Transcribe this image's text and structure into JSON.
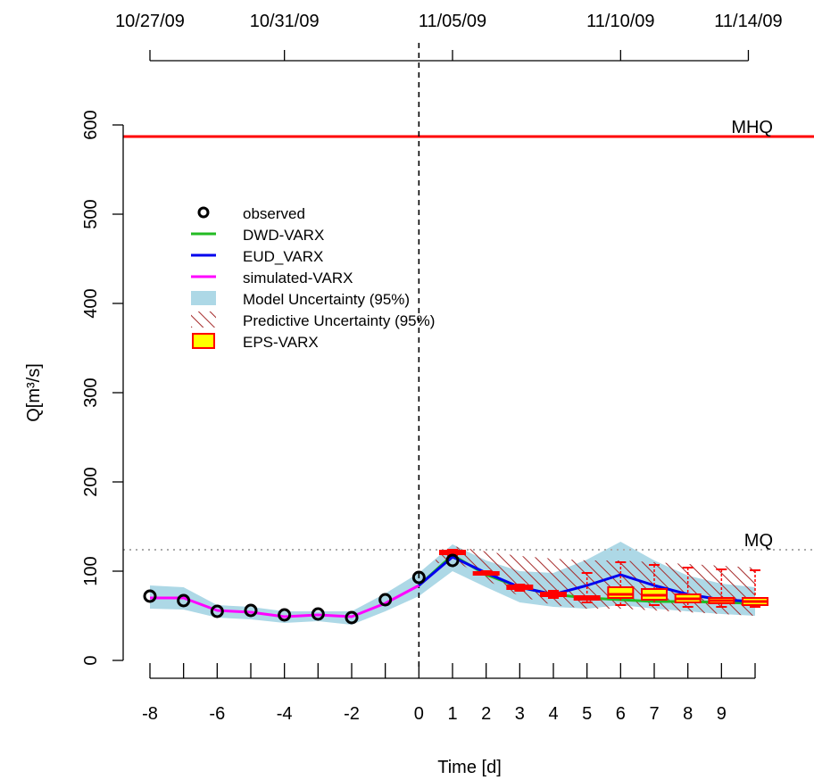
{
  "chart_data": {
    "type": "line",
    "ylabel": "Q[m³/s]",
    "xlabel": "Time [d]",
    "top_axis": {
      "ticks": [
        {
          "x": -8,
          "label": "10/27/09"
        },
        {
          "x": -4,
          "label": "10/31/09"
        },
        {
          "x": 1,
          "label": "11/05/09"
        },
        {
          "x": 6,
          "label": "11/10/09"
        },
        {
          "x": 9.8,
          "label": "11/14/09"
        }
      ]
    },
    "xlim": [
      -8.8,
      11.5
    ],
    "ylim": [
      0,
      600
    ],
    "x_ticks": [
      -8,
      -7,
      -6,
      -5,
      -4,
      -3,
      -2,
      -1,
      0,
      1,
      2,
      3,
      4,
      5,
      6,
      7,
      8,
      9,
      10
    ],
    "x_tick_labels": [
      "-8",
      "-6",
      "-4",
      "-2",
      "0",
      "1",
      "2",
      "3",
      "4",
      "5",
      "6",
      "7",
      "8",
      "9"
    ],
    "x_tick_label_values": [
      -8,
      -6,
      -4,
      -2,
      0,
      1,
      2,
      3,
      4,
      5,
      6,
      7,
      8,
      9
    ],
    "y_ticks": [
      0,
      100,
      200,
      300,
      400,
      500,
      600
    ],
    "y_tick_labels": [
      "0",
      "100",
      "200",
      "300",
      "400",
      "500",
      "600"
    ],
    "reference_lines": [
      {
        "name": "MHQ",
        "y": 587,
        "color": "#ff0000",
        "style": "solid"
      },
      {
        "name": "MQ",
        "y": 124,
        "color": "#aaaaaa",
        "style": "dotted"
      }
    ],
    "vline_x": 0,
    "legend": {
      "position": "top-left",
      "entries": [
        {
          "label": "observed",
          "kind": "circle",
          "color": "#000000"
        },
        {
          "label": "DWD-VARX",
          "kind": "line",
          "color": "#22bb22"
        },
        {
          "label": "EUD_VARX",
          "kind": "line",
          "color": "#0000ee"
        },
        {
          "label": "simulated-VARX",
          "kind": "line",
          "color": "#ff00ff"
        },
        {
          "label": "Model Uncertainty (95%)",
          "kind": "fill",
          "color": "#add8e6"
        },
        {
          "label": "Predictive Uncertainty (95%)",
          "kind": "hatch",
          "color": "#a52a2a"
        },
        {
          "label": "EPS-VARX",
          "kind": "box",
          "color": "#ffff00",
          "border": "#ff0000"
        }
      ]
    },
    "model_uncertainty": {
      "x": [
        -8,
        -7,
        -6,
        -5,
        -4,
        -3,
        -2,
        -1,
        0,
        1,
        2,
        3,
        4,
        5,
        6,
        7,
        8,
        9,
        10
      ],
      "upper": [
        84,
        82,
        62,
        60,
        55,
        55,
        55,
        75,
        98,
        130,
        112,
        100,
        98,
        113,
        133,
        112,
        95,
        86,
        82
      ],
      "lower": [
        58,
        57,
        48,
        46,
        42,
        44,
        40,
        55,
        72,
        100,
        82,
        65,
        60,
        58,
        62,
        58,
        55,
        52,
        50
      ]
    },
    "predictive_uncertainty": {
      "x": [
        0.5,
        1,
        2,
        3,
        4,
        5,
        6,
        7,
        8,
        9,
        10
      ],
      "upper": [
        118,
        128,
        122,
        117,
        114,
        112,
        112,
        110,
        108,
        106,
        104
      ],
      "lower": [
        108,
        114,
        90,
        72,
        62,
        58,
        58,
        56,
        54,
        52,
        50
      ]
    },
    "series": [
      {
        "name": "simulated-VARX",
        "color": "#ff00ff",
        "x": [
          -8,
          -7,
          -6,
          -5,
          -4,
          -3,
          -2,
          -1,
          0,
          1
        ],
        "y": [
          70,
          70,
          56,
          54,
          49,
          51,
          49,
          64,
          84,
          116
        ]
      },
      {
        "name": "DWD-VARX",
        "color": "#22bb22",
        "x": [
          0,
          1,
          2,
          3,
          4,
          5,
          6,
          7,
          8,
          9,
          10
        ],
        "y": [
          84,
          118,
          96,
          82,
          74,
          70,
          68,
          66,
          66,
          65,
          64
        ]
      },
      {
        "name": "EUD_VARX",
        "color": "#0000ee",
        "x": [
          0,
          1,
          2,
          3,
          4,
          5,
          6,
          7,
          8,
          9,
          10
        ],
        "y": [
          84,
          116,
          98,
          82,
          74,
          84,
          96,
          84,
          74,
          68,
          66
        ]
      },
      {
        "name": "observed",
        "color": "#000000",
        "x": [
          -8,
          -7,
          -6,
          -5,
          -4,
          -3,
          -2,
          -1,
          0,
          1
        ],
        "y": [
          72,
          67,
          55,
          56,
          51,
          52,
          48,
          68,
          93,
          112
        ]
      }
    ],
    "eps_boxes": [
      {
        "x": 1,
        "whisker_high": 124,
        "q3": 123,
        "median": 121,
        "q1": 119,
        "whisker_low": 118
      },
      {
        "x": 2,
        "whisker_high": 100,
        "q3": 99,
        "median": 98,
        "q1": 97,
        "whisker_low": 96
      },
      {
        "x": 3,
        "whisker_high": 85,
        "q3": 84,
        "median": 82,
        "q1": 80,
        "whisker_low": 78
      },
      {
        "x": 4,
        "whisker_high": 78,
        "q3": 76,
        "median": 74,
        "q1": 72,
        "whisker_low": 70
      },
      {
        "x": 5,
        "whisker_high": 98,
        "q3": 72,
        "median": 70,
        "q1": 68,
        "whisker_low": 65
      },
      {
        "x": 6,
        "whisker_high": 110,
        "q3": 82,
        "median": 74,
        "q1": 70,
        "whisker_low": 62
      },
      {
        "x": 7,
        "whisker_high": 107,
        "q3": 80,
        "median": 73,
        "q1": 68,
        "whisker_low": 62
      },
      {
        "x": 8,
        "whisker_high": 104,
        "q3": 74,
        "median": 69,
        "q1": 65,
        "whisker_low": 60
      },
      {
        "x": 9,
        "whisker_high": 102,
        "q3": 70,
        "median": 67,
        "q1": 64,
        "whisker_low": 60
      },
      {
        "x": 10,
        "whisker_high": 101,
        "q3": 70,
        "median": 66,
        "q1": 62,
        "whisker_low": 60
      }
    ]
  }
}
